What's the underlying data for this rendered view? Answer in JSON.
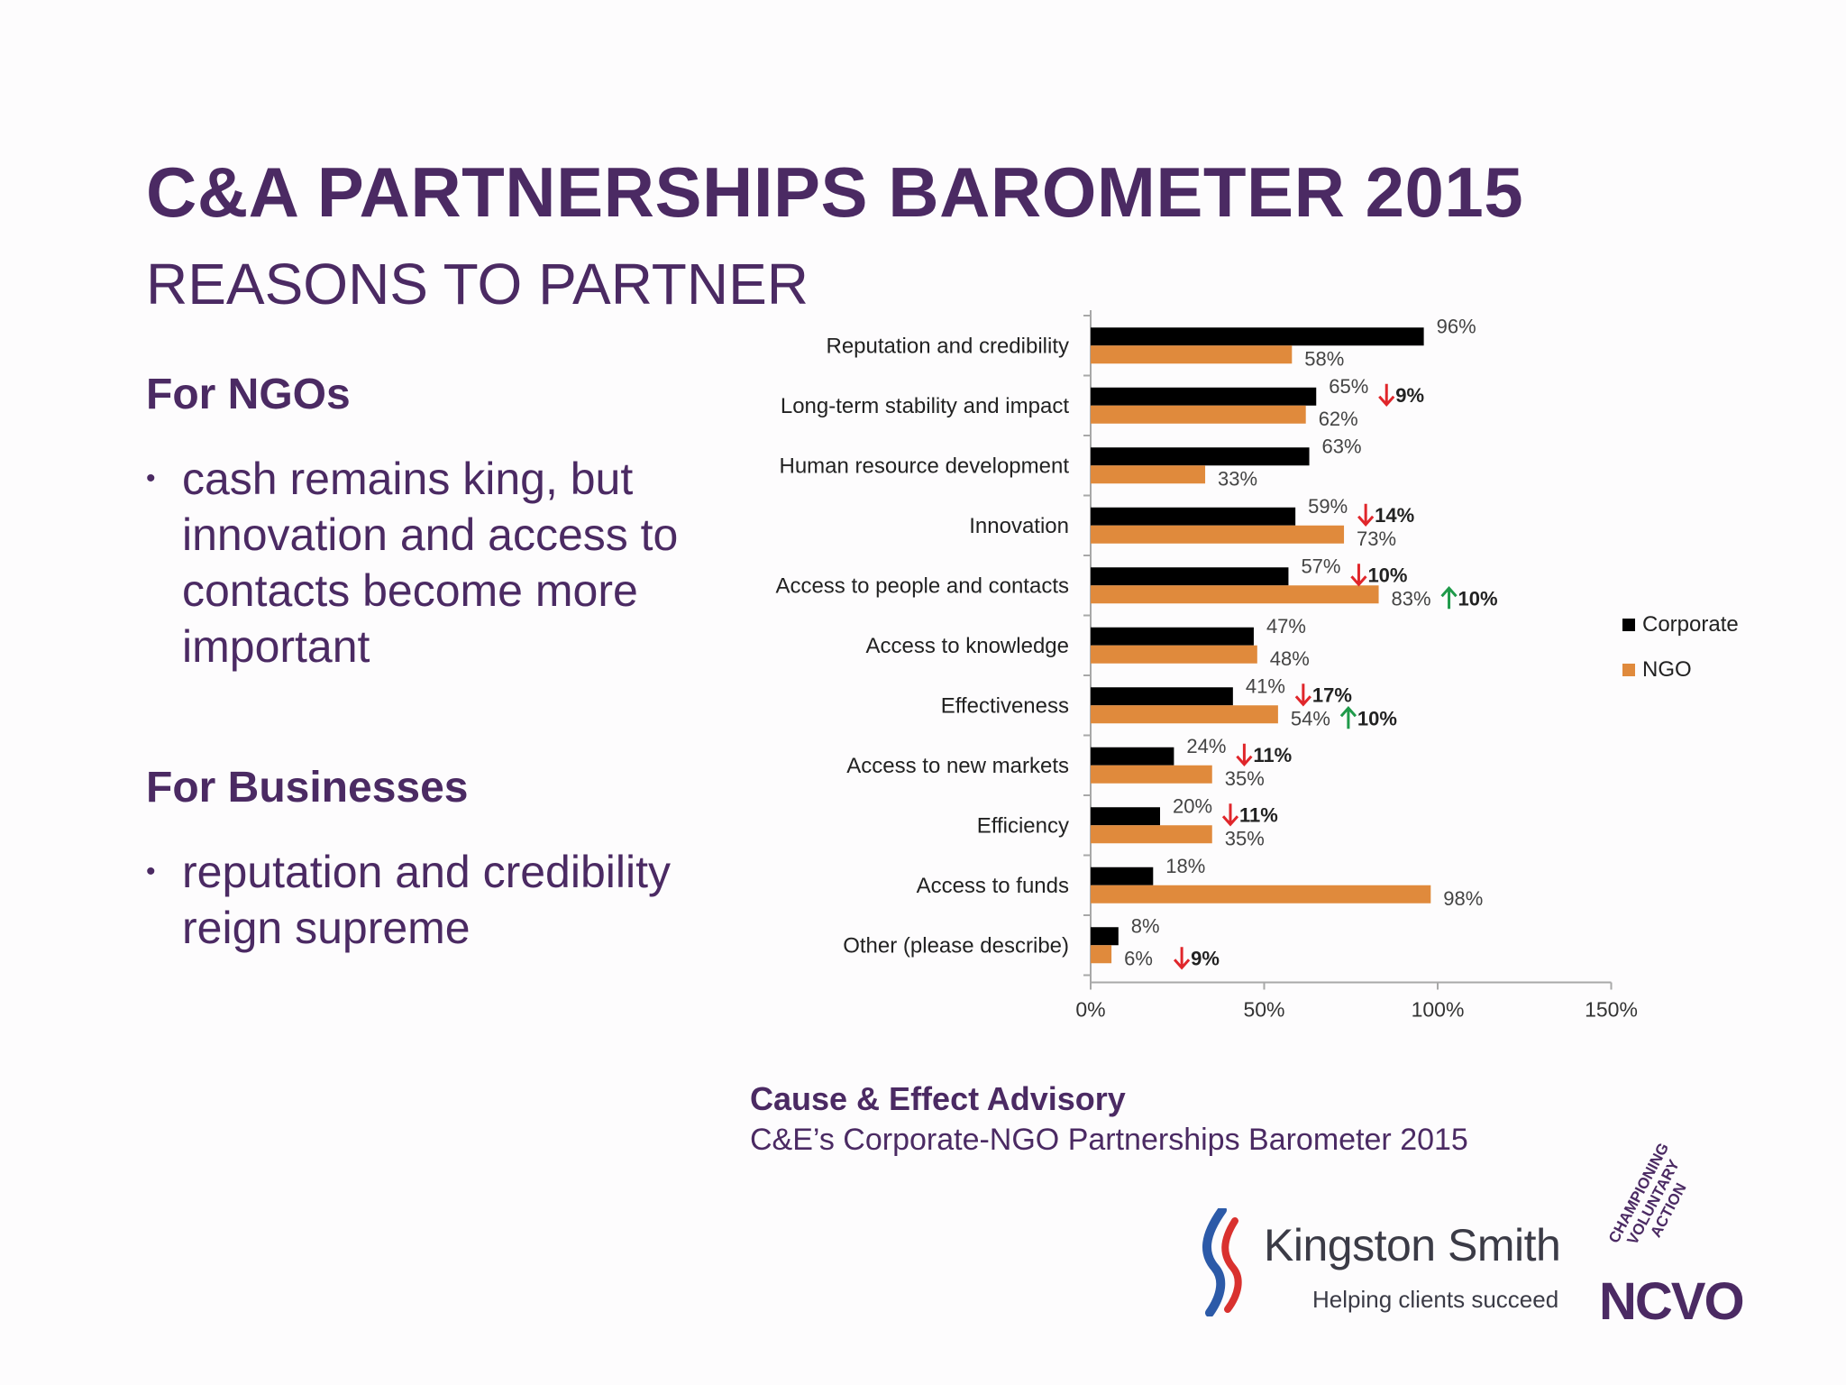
{
  "slide": {
    "title": "C&A PARTNERSHIPS BAROMETER 2015",
    "subtitle": "REASONS TO PARTNER"
  },
  "ngos": {
    "heading": "For NGOs",
    "bullet": "cash remains king, but innovation and access to contacts become more important"
  },
  "businesses": {
    "heading": "For Businesses",
    "bullet": "reputation and credibility reign supreme"
  },
  "bullet_symbol": "•",
  "source": {
    "org": "Cause & Effect Advisory",
    "ref": "C&E’s Corporate-NGO Partnerships Barometer 2015"
  },
  "logos": {
    "kingston_smith": {
      "name": "Kingston Smith",
      "tagline": "Helping clients succeed"
    },
    "ncvo": {
      "name": "NCVO",
      "tagline": "CHAMPIONING VOLUNTARY ACTION"
    }
  },
  "chart_data": {
    "type": "bar",
    "orientation": "horizontal",
    "categories": [
      "Reputation and credibility",
      "Long-term stability and impact",
      "Human resource development",
      "Innovation",
      "Access to people and contacts",
      "Access to knowledge",
      "Effectiveness",
      "Access to new markets",
      "Efficiency",
      "Access to funds",
      "Other (please describe)"
    ],
    "series": [
      {
        "name": "Corporate",
        "color": "#000000",
        "values": [
          96,
          65,
          63,
          59,
          57,
          47,
          41,
          24,
          20,
          18,
          8
        ],
        "labels": [
          "96%",
          "65%",
          "63%",
          "59%",
          "57%",
          "47%",
          "41%",
          "24%",
          "20%",
          "18%",
          "8%"
        ]
      },
      {
        "name": "NGO",
        "color": "#e08a3c",
        "values": [
          58,
          62,
          33,
          73,
          83,
          48,
          54,
          35,
          35,
          98,
          6
        ],
        "labels": [
          "58%",
          "62%",
          "33%",
          "73%",
          "83%",
          "48%",
          "54%",
          "35%",
          "35%",
          "98%",
          "6%"
        ]
      }
    ],
    "xlim": [
      0,
      150
    ],
    "xticks": [
      0,
      50,
      100,
      150
    ],
    "xtick_labels": [
      "0%",
      "50%",
      "100%",
      "150%"
    ],
    "legend": "right",
    "annotations": [
      {
        "category": "Long-term stability and impact",
        "series": "Corporate",
        "direction": "down",
        "text": "9%",
        "color": "#e0262b"
      },
      {
        "category": "Innovation",
        "series": "Corporate",
        "direction": "down",
        "text": "14%",
        "color": "#e0262b"
      },
      {
        "category": "Access to people and contacts",
        "series": "Corporate",
        "direction": "down",
        "text": "10%",
        "color": "#e0262b"
      },
      {
        "category": "Access to people and contacts",
        "series": "NGO",
        "direction": "up",
        "text": "10%",
        "color": "#1f9a4a"
      },
      {
        "category": "Effectiveness",
        "series": "Corporate",
        "direction": "down",
        "text": "17%",
        "color": "#e0262b"
      },
      {
        "category": "Effectiveness",
        "series": "NGO",
        "direction": "up",
        "text": "10%",
        "color": "#1f9a4a"
      },
      {
        "category": "Access to new markets",
        "series": "Corporate",
        "direction": "down",
        "text": "11%",
        "color": "#e0262b"
      },
      {
        "category": "Efficiency",
        "series": "Corporate",
        "direction": "down",
        "text": "11%",
        "color": "#e0262b"
      },
      {
        "category": "Other (please describe)",
        "series": "NGO",
        "direction": "down",
        "text": "9%",
        "color": "#e0262b"
      }
    ]
  }
}
